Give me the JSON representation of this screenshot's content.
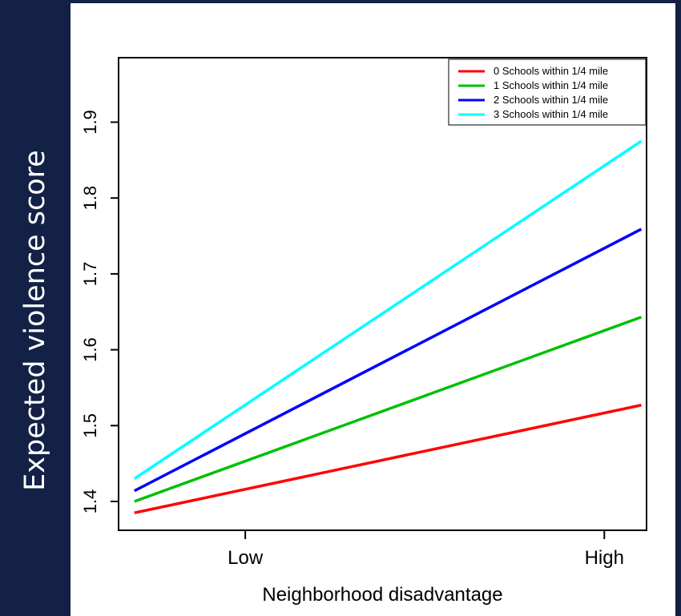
{
  "chart_data": {
    "type": "line",
    "xlabel": "Neighborhood disadvantage",
    "ylabel": "Expected violence score",
    "x": [
      "Low",
      "High"
    ],
    "xrange": [
      0.0,
      1.0
    ],
    "x_tick_positions": [
      0.24,
      0.92
    ],
    "ylim": [
      1.362,
      1.985
    ],
    "yticks": [
      1.4,
      1.5,
      1.6,
      1.7,
      1.8,
      1.9
    ],
    "ytick_labels": [
      "1.4",
      "1.5",
      "1.6",
      "1.7",
      "1.8",
      "1.9"
    ],
    "grid": false,
    "legend_position": "top-right",
    "series": [
      {
        "name": "0 Schools within 1/4 mile",
        "color": "#ff0000",
        "x": [
          0.03,
          0.99
        ],
        "values": [
          1.385,
          1.527
        ]
      },
      {
        "name": "1 Schools within 1/4 mile",
        "color": "#00c000",
        "x": [
          0.03,
          0.99
        ],
        "values": [
          1.4,
          1.643
        ]
      },
      {
        "name": "2 Schools within 1/4 mile",
        "color": "#0000ff",
        "x": [
          0.03,
          0.99
        ],
        "values": [
          1.414,
          1.759
        ]
      },
      {
        "name": "3 Schools within 1/4 mile",
        "color": "#00ffff",
        "x": [
          0.03,
          0.99
        ],
        "values": [
          1.43,
          1.875
        ]
      }
    ]
  }
}
